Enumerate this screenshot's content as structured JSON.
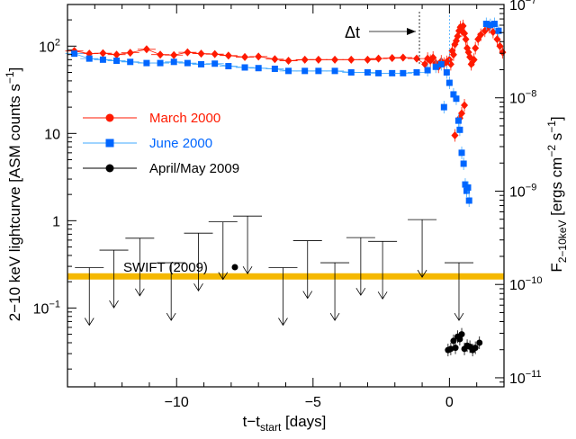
{
  "chart_data": {
    "type": "scatter",
    "xlabel": {
      "base": "t−t",
      "sub": "start",
      "rest": " [days]"
    },
    "ylabel_left": {
      "text": "2−10 keV lightcurve [ASM counts s",
      "sup": "−1",
      "close": "]"
    },
    "ylabel_right": {
      "F": "F",
      "Fsub": "2−10keV",
      "units": " [ergs cm",
      "sup1": "−2",
      "mid": " s",
      "sup2": "−1",
      "close": "]"
    },
    "xlim": [
      -14,
      2
    ],
    "ylim_left": [
      0.0125,
      300
    ],
    "ylim_right": [
      8e-12,
      1e-07
    ],
    "xticks": [
      {
        "v": -10,
        "label": "−10"
      },
      {
        "v": -5,
        "label": "−5"
      },
      {
        "v": 0,
        "label": "0"
      }
    ],
    "yticks_left": [
      {
        "v": 0.1,
        "base": "10",
        "sup": "−1"
      },
      {
        "v": 1,
        "base": "1",
        "sup": ""
      },
      {
        "v": 10,
        "base": "10",
        "sup": ""
      },
      {
        "v": 100,
        "base": "10",
        "sup": "2"
      }
    ],
    "yticks_right": [
      {
        "v": 1e-11,
        "base": "10",
        "sup": "−11"
      },
      {
        "v": 1e-10,
        "base": "10",
        "sup": "−10"
      },
      {
        "v": 1e-09,
        "base": "10",
        "sup": "−9"
      },
      {
        "v": 1e-08,
        "base": "10",
        "sup": "−8"
      },
      {
        "v": 1e-07,
        "base": "10",
        "sup": "−7"
      }
    ],
    "annotation_dt": {
      "label": "Δt",
      "from": -1.1,
      "to": 0.0
    },
    "threshold_line": {
      "y": 0.23,
      "color": "#f5b800"
    },
    "swift_label": "SWIFT (2009)",
    "colors": {
      "march": "#ff1a00",
      "june": "#0066ff",
      "june_line": "#3fa8ff",
      "april": "#000000"
    },
    "series": [
      {
        "name": "March 2000",
        "marker": "diamond",
        "points": [
          {
            "x": -13.75,
            "y": 88
          },
          {
            "x": -13.2,
            "y": 82
          },
          {
            "x": -12.7,
            "y": 83
          },
          {
            "x": -12.2,
            "y": 80
          },
          {
            "x": -11.7,
            "y": 84
          },
          {
            "x": -11.1,
            "y": 92
          },
          {
            "x": -10.6,
            "y": 80
          },
          {
            "x": -10.1,
            "y": 79
          },
          {
            "x": -9.6,
            "y": 85
          },
          {
            "x": -9.1,
            "y": 82
          },
          {
            "x": -8.6,
            "y": 81
          },
          {
            "x": -8.1,
            "y": 78
          },
          {
            "x": -7.5,
            "y": 75
          },
          {
            "x": -7.0,
            "y": 76
          },
          {
            "x": -6.4,
            "y": 71
          },
          {
            "x": -5.9,
            "y": 68
          },
          {
            "x": -5.3,
            "y": 70
          },
          {
            "x": -4.8,
            "y": 70
          },
          {
            "x": -4.2,
            "y": 70
          },
          {
            "x": -3.6,
            "y": 70
          },
          {
            "x": -3.0,
            "y": 70
          },
          {
            "x": -2.6,
            "y": 72
          },
          {
            "x": -2.1,
            "y": 73
          },
          {
            "x": -1.7,
            "y": 74
          },
          {
            "x": -1.2,
            "y": 72
          },
          {
            "x": -0.9,
            "y": 62
          },
          {
            "x": -0.8,
            "y": 72
          },
          {
            "x": -0.7,
            "y": 68
          },
          {
            "x": -0.6,
            "y": 74
          },
          {
            "x": -0.5,
            "y": 64
          },
          {
            "x": -0.4,
            "y": 58
          },
          {
            "x": -0.3,
            "y": 67
          },
          {
            "x": -0.2,
            "y": 63
          },
          {
            "x": -0.1,
            "y": 66
          },
          {
            "x": 0.0,
            "y": 70
          },
          {
            "x": 0.05,
            "y": 62
          },
          {
            "x": 0.1,
            "y": 88
          },
          {
            "x": 0.15,
            "y": 80
          },
          {
            "x": 0.2,
            "y": 105
          },
          {
            "x": 0.25,
            "y": 115
          },
          {
            "x": 0.3,
            "y": 130
          },
          {
            "x": 0.35,
            "y": 150
          },
          {
            "x": 0.4,
            "y": 165
          },
          {
            "x": 0.45,
            "y": 150
          },
          {
            "x": 0.5,
            "y": 170
          },
          {
            "x": 0.55,
            "y": 140
          },
          {
            "x": 0.6,
            "y": 120
          },
          {
            "x": 0.65,
            "y": 95
          },
          {
            "x": 0.7,
            "y": 85
          },
          {
            "x": 0.75,
            "y": 75
          },
          {
            "x": 0.8,
            "y": 62
          },
          {
            "x": 0.9,
            "y": 70
          },
          {
            "x": 0.95,
            "y": 95
          },
          {
            "x": 1.05,
            "y": 120
          },
          {
            "x": 1.15,
            "y": 135
          },
          {
            "x": 1.3,
            "y": 150
          },
          {
            "x": 1.45,
            "y": 165
          },
          {
            "x": 1.6,
            "y": 145
          },
          {
            "x": 1.75,
            "y": 120
          },
          {
            "x": 1.85,
            "y": 100
          },
          {
            "x": 1.95,
            "y": 85
          },
          {
            "x": 0.2,
            "y": 9.5
          },
          {
            "x": 0.38,
            "y": 15
          },
          {
            "x": 0.45,
            "y": 17
          },
          {
            "x": 0.55,
            "y": 21
          }
        ]
      },
      {
        "name": "June 2000",
        "marker": "square",
        "points": [
          {
            "x": -13.75,
            "y": 82
          },
          {
            "x": -13.2,
            "y": 72
          },
          {
            "x": -12.7,
            "y": 70
          },
          {
            "x": -12.2,
            "y": 68
          },
          {
            "x": -11.7,
            "y": 66
          },
          {
            "x": -11.1,
            "y": 64
          },
          {
            "x": -10.6,
            "y": 64
          },
          {
            "x": -10.1,
            "y": 66
          },
          {
            "x": -9.6,
            "y": 64
          },
          {
            "x": -9.1,
            "y": 62
          },
          {
            "x": -8.6,
            "y": 63
          },
          {
            "x": -8.1,
            "y": 59
          },
          {
            "x": -7.5,
            "y": 57
          },
          {
            "x": -7.0,
            "y": 56
          },
          {
            "x": -6.4,
            "y": 55
          },
          {
            "x": -5.9,
            "y": 52
          },
          {
            "x": -5.3,
            "y": 52
          },
          {
            "x": -4.8,
            "y": 52
          },
          {
            "x": -4.2,
            "y": 52
          },
          {
            "x": -3.6,
            "y": 50
          },
          {
            "x": -3.0,
            "y": 50
          },
          {
            "x": -2.6,
            "y": 49
          },
          {
            "x": -2.1,
            "y": 49
          },
          {
            "x": -1.7,
            "y": 49
          },
          {
            "x": -1.2,
            "y": 50
          },
          {
            "x": -0.8,
            "y": 53
          },
          {
            "x": -0.5,
            "y": 58
          },
          {
            "x": -0.3,
            "y": 62
          },
          {
            "x": -0.1,
            "y": 50
          },
          {
            "x": 0.0,
            "y": 38
          },
          {
            "x": -0.2,
            "y": 20
          },
          {
            "x": 0.15,
            "y": 28
          },
          {
            "x": 0.25,
            "y": 25
          },
          {
            "x": 0.33,
            "y": 14
          },
          {
            "x": 0.38,
            "y": 11
          },
          {
            "x": 0.45,
            "y": 6
          },
          {
            "x": 0.52,
            "y": 4.5
          },
          {
            "x": 0.58,
            "y": 2.6
          },
          {
            "x": 0.63,
            "y": 2.2
          },
          {
            "x": 0.68,
            "y": 2.4
          },
          {
            "x": 0.72,
            "y": 1.7
          },
          {
            "x": 1.35,
            "y": 180
          },
          {
            "x": 1.5,
            "y": 175
          },
          {
            "x": 1.65,
            "y": 180
          },
          {
            "x": 1.8,
            "y": 150
          }
        ]
      },
      {
        "name": "April/May 2009",
        "marker": "circle",
        "points": [
          {
            "x": -0.05,
            "y": 0.033
          },
          {
            "x": 0.05,
            "y": 0.034
          },
          {
            "x": 0.15,
            "y": 0.042
          },
          {
            "x": 0.22,
            "y": 0.035
          },
          {
            "x": 0.3,
            "y": 0.047
          },
          {
            "x": 0.38,
            "y": 0.044
          },
          {
            "x": 0.45,
            "y": 0.05
          },
          {
            "x": 0.55,
            "y": 0.034
          },
          {
            "x": 0.65,
            "y": 0.037
          },
          {
            "x": 0.75,
            "y": 0.036
          },
          {
            "x": 0.85,
            "y": 0.033
          },
          {
            "x": 0.95,
            "y": 0.035
          },
          {
            "x": 1.1,
            "y": 0.04
          }
        ]
      }
    ],
    "upper_limits": [
      {
        "x": -13.2,
        "y": 0.29
      },
      {
        "x": -12.3,
        "y": 0.46
      },
      {
        "x": -11.35,
        "y": 0.63
      },
      {
        "x": -10.2,
        "y": 0.33
      },
      {
        "x": -9.2,
        "y": 0.72
      },
      {
        "x": -8.3,
        "y": 0.97
      },
      {
        "x": -7.4,
        "y": 1.13
      },
      {
        "x": -6.1,
        "y": 0.29
      },
      {
        "x": -5.2,
        "y": 0.59
      },
      {
        "x": -4.2,
        "y": 0.33
      },
      {
        "x": -3.25,
        "y": 0.64
      },
      {
        "x": -2.45,
        "y": 0.58
      },
      {
        "x": -1.0,
        "y": 1.03
      },
      {
        "x": 0.35,
        "y": 0.33
      }
    ]
  }
}
